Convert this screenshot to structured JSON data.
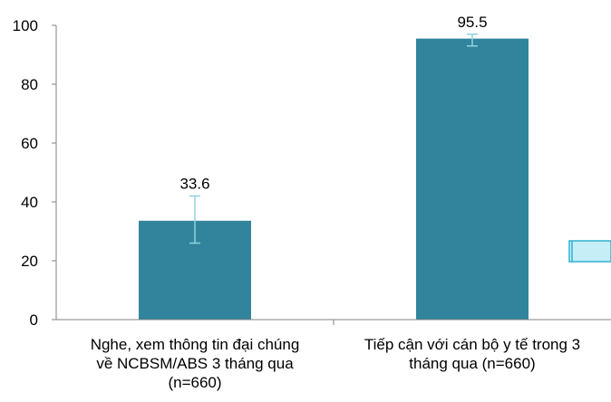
{
  "chart_data": {
    "type": "bar",
    "categories": [
      [
        "Nghe, xem thông tin đại chúng",
        "về NCBSM/ABS 3 tháng qua",
        "(n=660)"
      ],
      [
        "Tiếp cận với cán bộ y tế trong 3",
        "tháng qua (n=660)"
      ]
    ],
    "values": [
      33.6,
      95.5
    ],
    "error_bars": [
      [
        26,
        42
      ],
      [
        93,
        97
      ]
    ],
    "data_labels": [
      "33.6",
      "95.5"
    ],
    "ylim": [
      0,
      100
    ],
    "yticks": [
      0,
      20,
      40,
      60,
      80,
      100
    ],
    "title": "",
    "xlabel": "",
    "ylabel": "",
    "grid": false,
    "legend": "none",
    "colors": {
      "bar": "#31849b",
      "error_bar": "#8fd3e0",
      "axis": "#808080",
      "arrow_fill": "#c5eef7",
      "arrow_stroke": "#31b0d0"
    }
  }
}
